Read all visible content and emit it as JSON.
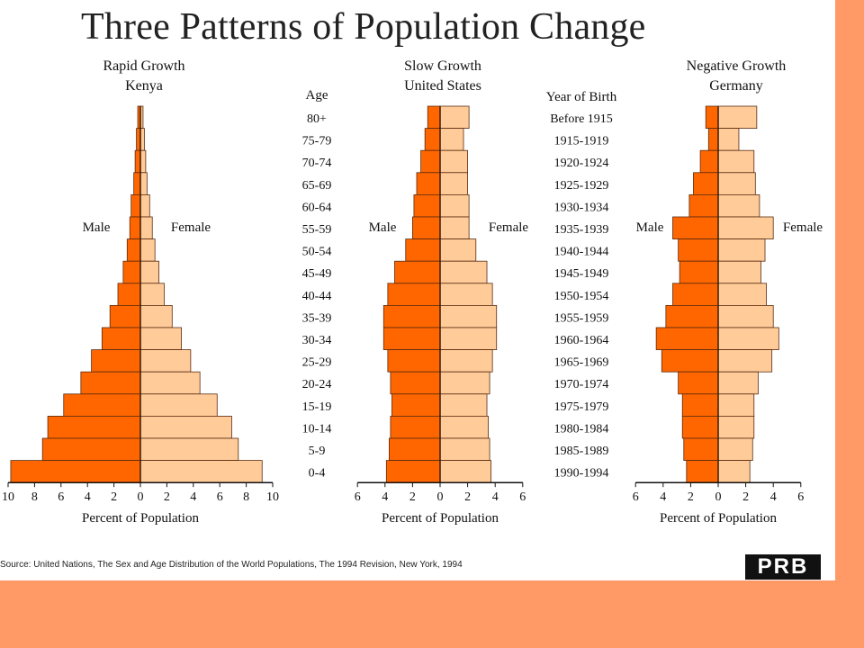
{
  "title": "Three Patterns of Population Change",
  "age_label": "Age",
  "birth_label": "Year of Birth",
  "age_groups": [
    "80+",
    "75-79",
    "70-74",
    "65-69",
    "60-64",
    "55-59",
    "50-54",
    "45-49",
    "40-44",
    "35-39",
    "30-34",
    "25-29",
    "20-24",
    "15-19",
    "10-14",
    "5-9",
    "0-4"
  ],
  "birth_years": [
    "Before 1915",
    "1915-1919",
    "1920-1924",
    "1925-1929",
    "1930-1934",
    "1935-1939",
    "1940-1944",
    "1945-1949",
    "1950-1954",
    "1955-1959",
    "1960-1964",
    "1965-1969",
    "1970-1974",
    "1975-1979",
    "1980-1984",
    "1985-1989",
    "1990-1994"
  ],
  "male_label": "Male",
  "female_label": "Female",
  "source": "Source: United Nations, The Sex and Age Distribution of the World Populations, The 1994 Revision, New York, 1994",
  "logo": "PRB",
  "colors": {
    "male": "#ff6600",
    "female": "#ffcc99",
    "stroke": "#5a2a10",
    "background": "#ff9966"
  },
  "chart_data": [
    {
      "type": "bar",
      "subtitle": [
        "Rapid Growth",
        "Kenya"
      ],
      "xlabel": "Percent of Population",
      "xlim": [
        -10,
        10
      ],
      "xticks": [
        "10",
        "8",
        "6",
        "4",
        "2",
        "0",
        "2",
        "4",
        "6",
        "8",
        "10"
      ],
      "categories": [
        "80+",
        "75-79",
        "70-74",
        "65-69",
        "60-64",
        "55-59",
        "50-54",
        "45-49",
        "40-44",
        "35-39",
        "30-34",
        "25-29",
        "20-24",
        "15-19",
        "10-14",
        "5-9",
        "0-4"
      ],
      "series": [
        {
          "name": "Male",
          "values": [
            0.2,
            0.3,
            0.4,
            0.5,
            0.7,
            0.8,
            1.0,
            1.3,
            1.7,
            2.3,
            2.9,
            3.7,
            4.5,
            5.8,
            7.0,
            7.4,
            9.8
          ]
        },
        {
          "name": "Female",
          "values": [
            0.2,
            0.3,
            0.4,
            0.5,
            0.7,
            0.9,
            1.1,
            1.4,
            1.8,
            2.4,
            3.1,
            3.8,
            4.5,
            5.8,
            6.9,
            7.4,
            9.2
          ]
        }
      ]
    },
    {
      "type": "bar",
      "subtitle": [
        "Slow Growth",
        "United States"
      ],
      "xlabel": "Percent of Population",
      "xlim": [
        -6,
        6
      ],
      "xticks": [
        "6",
        "4",
        "2",
        "0",
        "2",
        "4",
        "6"
      ],
      "categories": [
        "80+",
        "75-79",
        "70-74",
        "65-69",
        "60-64",
        "55-59",
        "50-54",
        "45-49",
        "40-44",
        "35-39",
        "30-34",
        "25-29",
        "20-24",
        "15-19",
        "10-14",
        "5-9",
        "0-4"
      ],
      "series": [
        {
          "name": "Male",
          "values": [
            0.9,
            1.1,
            1.4,
            1.7,
            1.9,
            2.0,
            2.5,
            3.3,
            3.8,
            4.1,
            4.1,
            3.8,
            3.6,
            3.5,
            3.6,
            3.7,
            3.9
          ]
        },
        {
          "name": "Female",
          "values": [
            2.1,
            1.7,
            2.0,
            2.0,
            2.1,
            2.1,
            2.6,
            3.4,
            3.8,
            4.1,
            4.1,
            3.8,
            3.6,
            3.4,
            3.5,
            3.6,
            3.7
          ]
        }
      ]
    },
    {
      "type": "bar",
      "subtitle": [
        "Negative Growth",
        "Germany"
      ],
      "xlabel": "Percent of Population",
      "xlim": [
        -6,
        6
      ],
      "xticks": [
        "6",
        "4",
        "2",
        "0",
        "2",
        "4",
        "6"
      ],
      "categories": [
        "80+",
        "75-79",
        "70-74",
        "65-69",
        "60-64",
        "55-59",
        "50-54",
        "45-49",
        "40-44",
        "35-39",
        "30-34",
        "25-29",
        "20-24",
        "15-19",
        "10-14",
        "5-9",
        "0-4"
      ],
      "series": [
        {
          "name": "Male",
          "values": [
            0.9,
            0.7,
            1.3,
            1.8,
            2.1,
            3.3,
            2.9,
            2.8,
            3.3,
            3.8,
            4.5,
            4.1,
            2.9,
            2.6,
            2.6,
            2.5,
            2.3
          ]
        },
        {
          "name": "Female",
          "values": [
            2.8,
            1.5,
            2.6,
            2.7,
            3.0,
            4.0,
            3.4,
            3.1,
            3.5,
            4.0,
            4.4,
            3.9,
            2.9,
            2.6,
            2.6,
            2.5,
            2.3
          ]
        }
      ]
    }
  ]
}
